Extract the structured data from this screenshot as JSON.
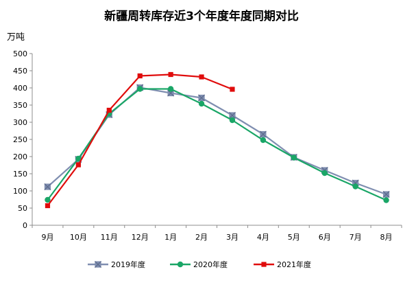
{
  "chart_data": {
    "type": "line",
    "title": "新疆周转库存近3个年度年度同期对比",
    "ylabel": "万吨",
    "xlabel": "",
    "ylim": [
      0,
      500
    ],
    "yticks": [
      0,
      50,
      100,
      150,
      200,
      250,
      300,
      350,
      400,
      450,
      500
    ],
    "categories": [
      "9月",
      "10月",
      "11月",
      "12月",
      "1月",
      "2月",
      "3月",
      "4月",
      "5月",
      "6月",
      "7月",
      "8月"
    ],
    "grid": false,
    "legend_position": "bottom",
    "series": [
      {
        "name": "2019年度",
        "color": "#7f8eb0",
        "marker": "star",
        "values": [
          112,
          192,
          322,
          401,
          385,
          371,
          320,
          265,
          198,
          160,
          123,
          90
        ]
      },
      {
        "name": "2020年度",
        "color": "#1aa667",
        "marker": "circle",
        "values": [
          74,
          194,
          325,
          397,
          397,
          354,
          306,
          248,
          197,
          152,
          113,
          73
        ]
      },
      {
        "name": "2021年度",
        "color": "#e00c0c",
        "marker": "square",
        "values": [
          57,
          176,
          335,
          435,
          439,
          432,
          396,
          null,
          null,
          null,
          null,
          null
        ]
      }
    ]
  }
}
